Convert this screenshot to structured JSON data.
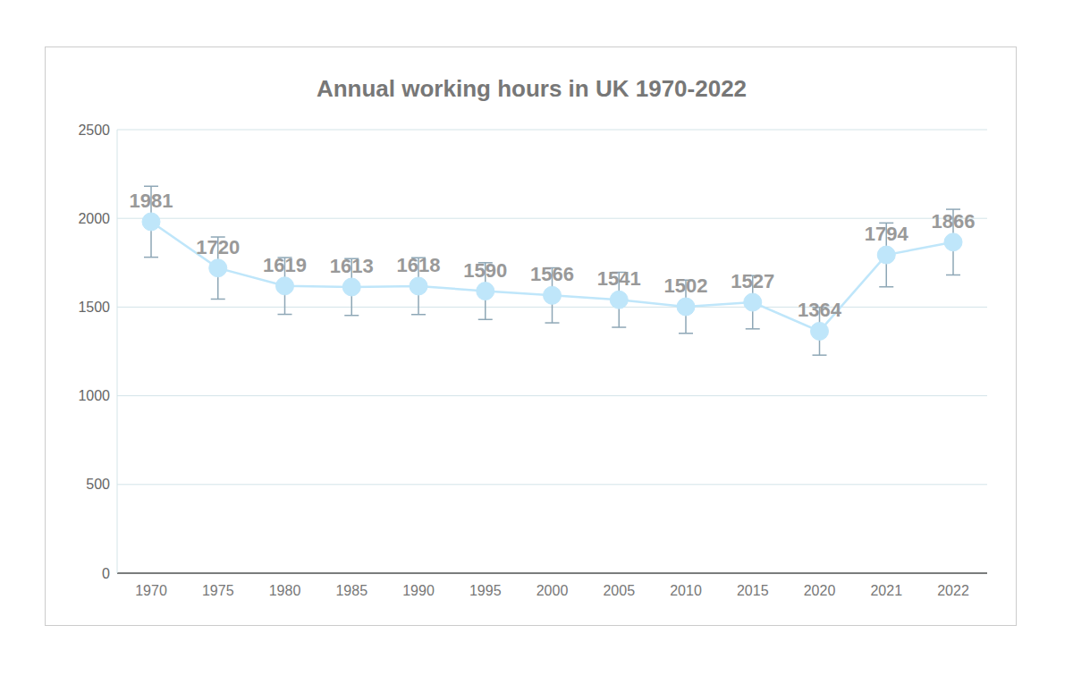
{
  "chart_data": {
    "type": "line",
    "title": "Annual working hours in UK 1970-2022",
    "categories": [
      "1970",
      "1975",
      "1980",
      "1985",
      "1990",
      "1995",
      "2000",
      "2005",
      "2010",
      "2015",
      "2020",
      "2021",
      "2022"
    ],
    "values": [
      1981,
      1720,
      1619,
      1613,
      1618,
      1590,
      1566,
      1541,
      1502,
      1527,
      1364,
      1794,
      1866
    ],
    "errors": [
      200,
      175,
      160,
      160,
      160,
      160,
      155,
      155,
      150,
      150,
      135,
      180,
      185
    ],
    "color": "#bfe6fa",
    "marker": "circle",
    "data_labels": true,
    "ylim": [
      0,
      2500
    ],
    "yticks": [
      0,
      500,
      1000,
      1500,
      2000,
      2500
    ],
    "grid": true
  }
}
